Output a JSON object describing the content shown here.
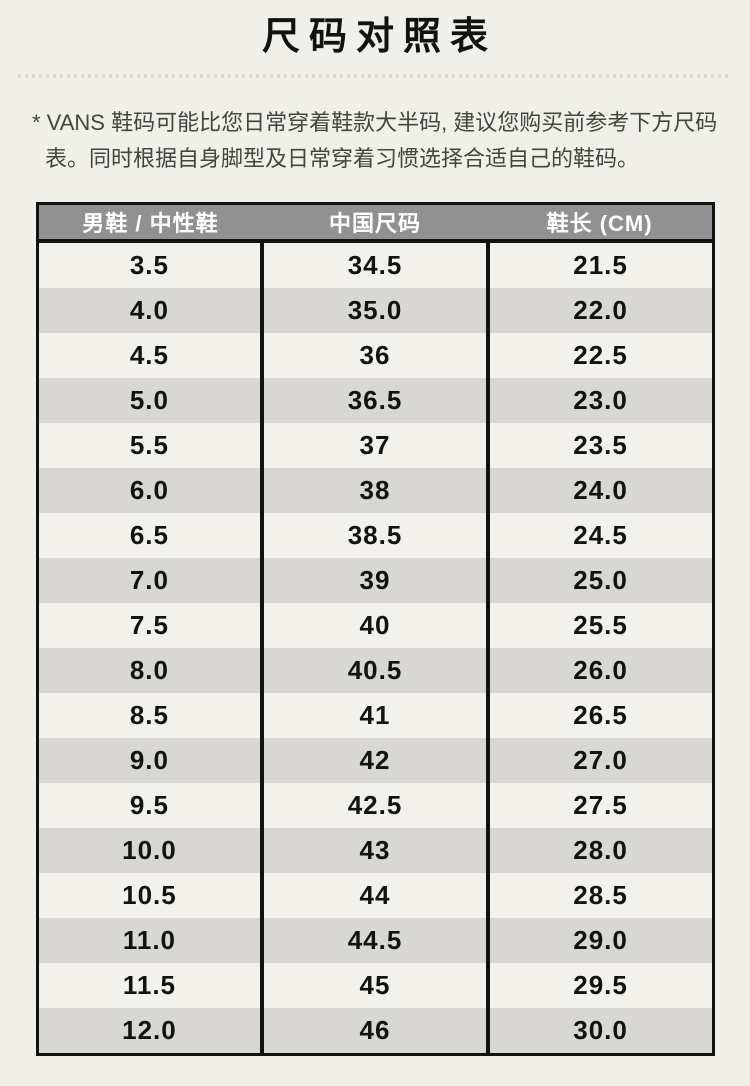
{
  "page": {
    "title": "尺码对照表",
    "note": "* VANS 鞋码可能比您日常穿着鞋款大半码, 建议您购买前参考下方尺码表。同时根据自身脚型及日常穿着习惯选择合适自己的鞋码。"
  },
  "colors": {
    "page_background": "#f0efea",
    "header_background": "#919191",
    "header_text": "#ffffff",
    "row_light": "#f2f1ec",
    "row_dark": "#d8d7d3",
    "table_border": "#121212",
    "note_text": "#45453f",
    "dotted_divider": "#dcdbd3"
  },
  "table": {
    "headers": [
      "男鞋 / 中性鞋",
      "中国尺码",
      "鞋长 (CM)"
    ],
    "rows": [
      [
        "3.5",
        "34.5",
        "21.5"
      ],
      [
        "4.0",
        "35.0",
        "22.0"
      ],
      [
        "4.5",
        "36",
        "22.5"
      ],
      [
        "5.0",
        "36.5",
        "23.0"
      ],
      [
        "5.5",
        "37",
        "23.5"
      ],
      [
        "6.0",
        "38",
        "24.0"
      ],
      [
        "6.5",
        "38.5",
        "24.5"
      ],
      [
        "7.0",
        "39",
        "25.0"
      ],
      [
        "7.5",
        "40",
        "25.5"
      ],
      [
        "8.0",
        "40.5",
        "26.0"
      ],
      [
        "8.5",
        "41",
        "26.5"
      ],
      [
        "9.0",
        "42",
        "27.0"
      ],
      [
        "9.5",
        "42.5",
        "27.5"
      ],
      [
        "10.0",
        "43",
        "28.0"
      ],
      [
        "10.5",
        "44",
        "28.5"
      ],
      [
        "11.0",
        "44.5",
        "29.0"
      ],
      [
        "11.5",
        "45",
        "29.5"
      ],
      [
        "12.0",
        "46",
        "30.0"
      ]
    ]
  }
}
